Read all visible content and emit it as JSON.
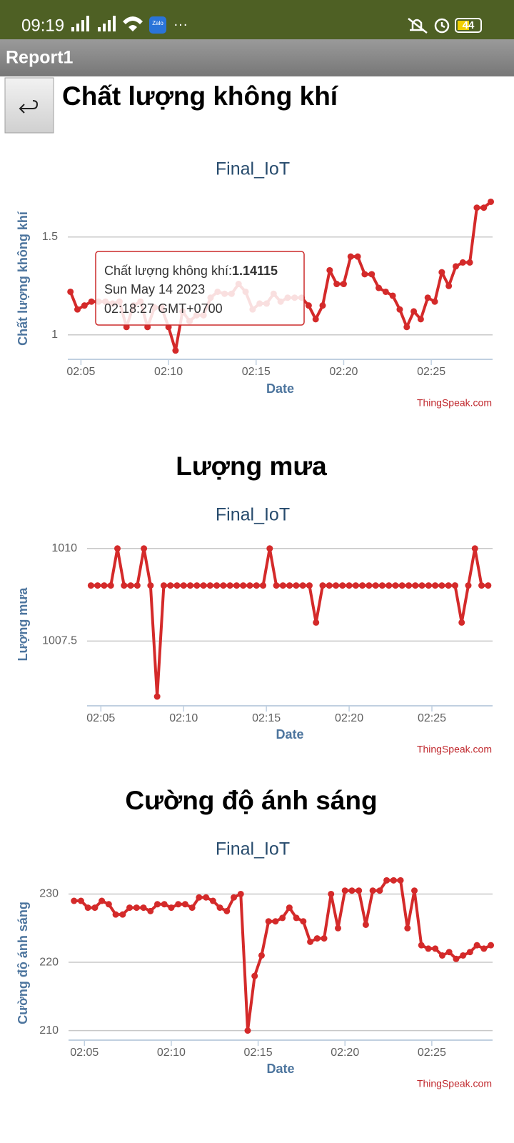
{
  "status_bar": {
    "time": "09:19",
    "app_icon": "Zalo",
    "more": "···",
    "battery": "44"
  },
  "app_bar": {
    "title": "Report1"
  },
  "headings": [
    "Chất lượng không khí",
    "Lượng mưa",
    "Cường độ ánh sáng"
  ],
  "chart_data": [
    {
      "type": "line",
      "title": "Final_IoT",
      "y_label": "Chất lượng không khí",
      "x_label": "Date",
      "credit": "ThingSpeak.com",
      "color": "#d42a2a",
      "grid": true,
      "x": [
        "02:04:24",
        "02:04:48",
        "02:05:12",
        "02:05:36",
        "02:06:00",
        "02:06:24",
        "02:06:48",
        "02:07:12",
        "02:07:36",
        "02:08:00",
        "02:08:24",
        "02:08:48",
        "02:09:12",
        "02:09:36",
        "02:10:00",
        "02:10:24",
        "02:10:48",
        "02:11:12",
        "02:11:36",
        "02:12:00",
        "02:12:24",
        "02:12:48",
        "02:13:12",
        "02:13:36",
        "02:14:00",
        "02:14:24",
        "02:14:48",
        "02:15:12",
        "02:15:36",
        "02:16:00",
        "02:16:24",
        "02:16:48",
        "02:17:12",
        "02:17:36",
        "02:18:00",
        "02:18:24",
        "02:18:48",
        "02:19:12",
        "02:19:36",
        "02:20:00",
        "02:20:24",
        "02:20:48",
        "02:21:12",
        "02:21:36",
        "02:22:00",
        "02:22:24",
        "02:22:48",
        "02:23:12",
        "02:23:36",
        "02:24:00",
        "02:24:24",
        "02:24:48",
        "02:25:12",
        "02:25:36",
        "02:26:00",
        "02:26:24",
        "02:26:48",
        "02:27:12",
        "02:27:36",
        "02:28:00",
        "02:28:24"
      ],
      "values": [
        1.22,
        1.13,
        1.15,
        1.17,
        1.17,
        1.17,
        1.16,
        1.17,
        1.04,
        1.15,
        1.17,
        1.04,
        1.14,
        1.14,
        1.04,
        0.92,
        1.12,
        1.07,
        1.1,
        1.1,
        1.19,
        1.22,
        1.21,
        1.21,
        1.26,
        1.22,
        1.13,
        1.16,
        1.16,
        1.21,
        1.17,
        1.19,
        1.19,
        1.19,
        1.15,
        1.08,
        1.15,
        1.33,
        1.26,
        1.26,
        1.4,
        1.4,
        1.31,
        1.31,
        1.24,
        1.22,
        1.2,
        1.13,
        1.04,
        1.12,
        1.08,
        1.19,
        1.17,
        1.32,
        1.25,
        1.35,
        1.37,
        1.37,
        1.65,
        1.65,
        1.68
      ],
      "xlim": [
        "02:04:15",
        "02:28:30"
      ],
      "xticks": [
        "02:05",
        "02:10",
        "02:15",
        "02:20",
        "02:25"
      ],
      "ylim": [
        0.875,
        1.7
      ],
      "yticks": [
        1,
        1.5
      ],
      "tooltip": {
        "label": "Chất lượng không khí:",
        "value": 1.14115,
        "date": "Sun May 14 2023",
        "time": "02:18:27 GMT+0700"
      }
    },
    {
      "type": "line",
      "title": "Final_IoT",
      "y_label": "Lượng mưa",
      "x_label": "Date",
      "credit": "ThingSpeak.com",
      "color": "#d42a2a",
      "grid": true,
      "x": [
        "02:04:24",
        "02:04:48",
        "02:05:12",
        "02:05:36",
        "02:06:00",
        "02:06:24",
        "02:06:48",
        "02:07:12",
        "02:07:36",
        "02:08:00",
        "02:08:24",
        "02:08:48",
        "02:09:12",
        "02:09:36",
        "02:10:00",
        "02:10:24",
        "02:10:48",
        "02:11:12",
        "02:11:36",
        "02:12:00",
        "02:12:24",
        "02:12:48",
        "02:13:12",
        "02:13:36",
        "02:14:00",
        "02:14:24",
        "02:14:48",
        "02:15:12",
        "02:15:36",
        "02:16:00",
        "02:16:24",
        "02:16:48",
        "02:17:12",
        "02:17:36",
        "02:18:00",
        "02:18:24",
        "02:18:48",
        "02:19:12",
        "02:19:36",
        "02:20:00",
        "02:20:24",
        "02:20:48",
        "02:21:12",
        "02:21:36",
        "02:22:00",
        "02:22:24",
        "02:22:48",
        "02:23:12",
        "02:23:36",
        "02:24:00",
        "02:24:24",
        "02:24:48",
        "02:25:12",
        "02:25:36",
        "02:26:00",
        "02:26:24",
        "02:26:48",
        "02:27:12",
        "02:27:36",
        "02:28:00",
        "02:28:24"
      ],
      "values": [
        1009,
        1009,
        1009,
        1009,
        1010,
        1009,
        1009,
        1009,
        1010,
        1009,
        1006,
        1009,
        1009,
        1009,
        1009,
        1009,
        1009,
        1009,
        1009,
        1009,
        1009,
        1009,
        1009,
        1009,
        1009,
        1009,
        1009,
        1010,
        1009,
        1009,
        1009,
        1009,
        1009,
        1009,
        1008,
        1009,
        1009,
        1009,
        1009,
        1009,
        1009,
        1009,
        1009,
        1009,
        1009,
        1009,
        1009,
        1009,
        1009,
        1009,
        1009,
        1009,
        1009,
        1009,
        1009,
        1009,
        1008,
        1009,
        1010,
        1009,
        1009
      ],
      "xlim": [
        "02:04:10",
        "02:28:40"
      ],
      "xticks": [
        "02:05",
        "02:10",
        "02:15",
        "02:20",
        "02:25"
      ],
      "ylim": [
        1005.75,
        1010.15
      ],
      "yticks": [
        1007.5,
        1010
      ]
    },
    {
      "type": "line",
      "title": "Final_IoT",
      "y_label": "Cường độ ánh sáng",
      "x_label": "Date",
      "credit": "ThingSpeak.com",
      "color": "#d42a2a",
      "grid": true,
      "x": [
        "02:04:24",
        "02:04:48",
        "02:05:12",
        "02:05:36",
        "02:06:00",
        "02:06:24",
        "02:06:48",
        "02:07:12",
        "02:07:36",
        "02:08:00",
        "02:08:24",
        "02:08:48",
        "02:09:12",
        "02:09:36",
        "02:10:00",
        "02:10:24",
        "02:10:48",
        "02:11:12",
        "02:11:36",
        "02:12:00",
        "02:12:24",
        "02:12:48",
        "02:13:12",
        "02:13:36",
        "02:14:00",
        "02:14:24",
        "02:14:48",
        "02:15:12",
        "02:15:36",
        "02:16:00",
        "02:16:24",
        "02:16:48",
        "02:17:12",
        "02:17:36",
        "02:18:00",
        "02:18:24",
        "02:18:48",
        "02:19:12",
        "02:19:36",
        "02:20:00",
        "02:20:24",
        "02:20:48",
        "02:21:12",
        "02:21:36",
        "02:22:00",
        "02:22:24",
        "02:22:48",
        "02:23:12",
        "02:23:36",
        "02:24:00",
        "02:24:24",
        "02:24:48",
        "02:25:12",
        "02:25:36",
        "02:26:00",
        "02:26:24",
        "02:26:48",
        "02:27:12",
        "02:27:36",
        "02:28:00",
        "02:28:24"
      ],
      "values": [
        229,
        229,
        228,
        228,
        229,
        228.5,
        227,
        227,
        228,
        228,
        228,
        227.5,
        228.5,
        228.5,
        228,
        228.5,
        228.5,
        228,
        229.5,
        229.5,
        229,
        228,
        227.5,
        229.5,
        230,
        210,
        218,
        221,
        226,
        226,
        226.5,
        228,
        226.5,
        226,
        223,
        223.5,
        223.5,
        230,
        225,
        230.5,
        230.5,
        230.5,
        225.5,
        230.5,
        230.5,
        232,
        232,
        232,
        225,
        230.5,
        222.5,
        222,
        222,
        221,
        221.5,
        220.5,
        221,
        221.5,
        222.5,
        222,
        222.5
      ],
      "xlim": [
        "02:04:05",
        "02:28:30"
      ],
      "xticks": [
        "02:05",
        "02:10",
        "02:15",
        "02:20",
        "02:25"
      ],
      "ylim": [
        208.6,
        231.2
      ],
      "yticks": [
        210,
        220,
        230
      ]
    }
  ]
}
